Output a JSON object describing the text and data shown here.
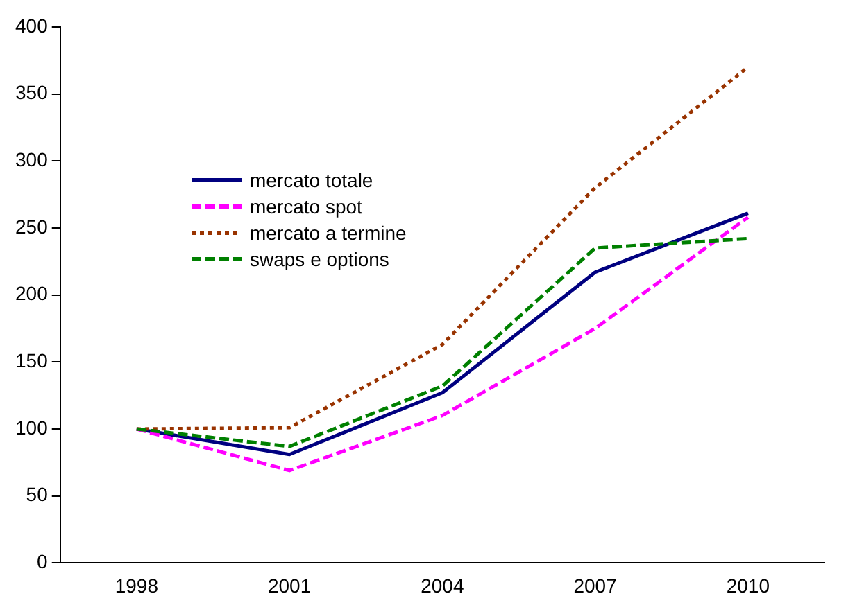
{
  "chart_data": {
    "type": "line",
    "categories": [
      "1998",
      "2001",
      "2004",
      "2007",
      "2010"
    ],
    "series": [
      {
        "name": "mercato totale",
        "color": "#000080",
        "line_style": "solid",
        "values": [
          100,
          81,
          127,
          217,
          261
        ]
      },
      {
        "name": "mercato spot",
        "color": "#ff00ff",
        "line_style": "dashed",
        "values": [
          100,
          69,
          110,
          175,
          258
        ]
      },
      {
        "name": "mercato a termine",
        "color": "#993300",
        "line_style": "dotted",
        "values": [
          100,
          101,
          163,
          280,
          370
        ]
      },
      {
        "name": "swaps e options",
        "color": "#008000",
        "line_style": "dashed",
        "values": [
          100,
          87,
          132,
          235,
          242
        ]
      }
    ],
    "ylim": [
      0,
      400
    ],
    "yticks": [
      0,
      50,
      100,
      150,
      200,
      250,
      300,
      350,
      400
    ],
    "grid": false,
    "legend": "top left",
    "marker": "none"
  }
}
